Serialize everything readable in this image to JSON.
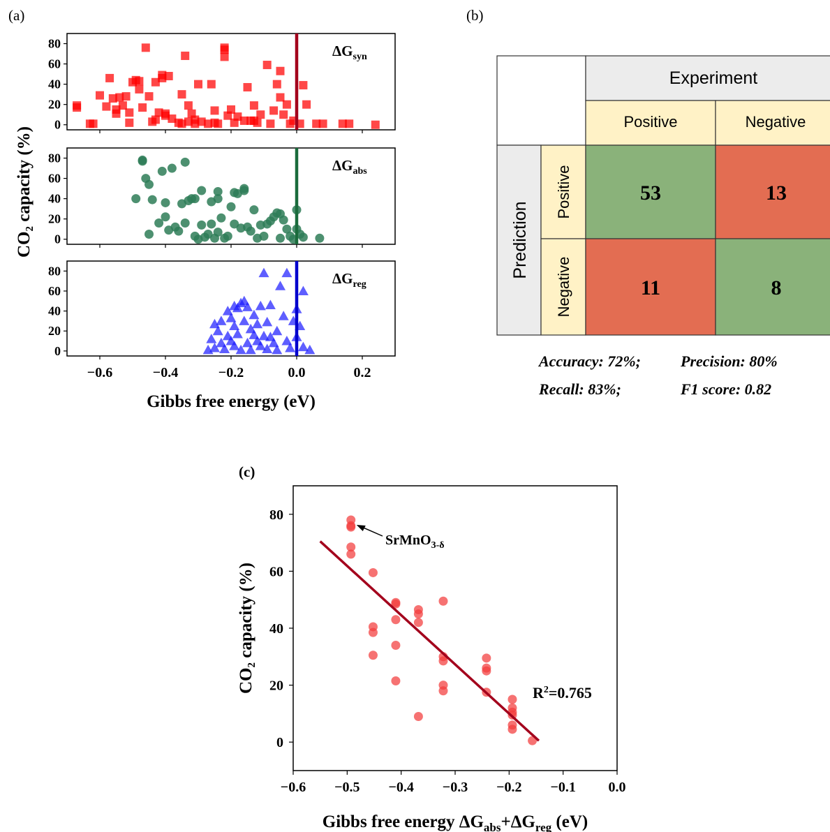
{
  "panel_labels": {
    "a": "(a)",
    "b": "(b)",
    "c": "(c)"
  },
  "colors": {
    "syn": "#ff0000",
    "syn_line": "#a3001c",
    "abs": "#2e7d57",
    "abs_line": "#1a6b3c",
    "reg": "#1a1aff",
    "reg_line": "#0000cc",
    "c_points": "#f23c3c",
    "c_line": "#a3001c",
    "header_gray": "#ececec",
    "header_yellow": "#fff2c6",
    "cell_green": "#8ab27a",
    "cell_red": "#e36d52"
  },
  "chart_data": [
    {
      "type": "scatter",
      "panel": "a-top",
      "marker": "square",
      "annotation": {
        "base": "ΔG",
        "sub": "syn"
      },
      "ylabel": "CO₂ capacity (%)",
      "xlim": [
        -0.7,
        0.3
      ],
      "ylim": [
        -5,
        90
      ],
      "yticks": [
        "0",
        "20",
        "40",
        "60",
        "80"
      ],
      "xticks": [],
      "vline": 0,
      "points": [
        [
          -0.67,
          19
        ],
        [
          -0.67,
          17
        ],
        [
          -0.63,
          1
        ],
        [
          -0.62,
          1
        ],
        [
          -0.6,
          29
        ],
        [
          -0.58,
          18
        ],
        [
          -0.57,
          46
        ],
        [
          -0.56,
          26
        ],
        [
          -0.55,
          11
        ],
        [
          -0.55,
          15
        ],
        [
          -0.54,
          27
        ],
        [
          -0.53,
          19
        ],
        [
          -0.52,
          28
        ],
        [
          -0.51,
          12
        ],
        [
          -0.51,
          2
        ],
        [
          -0.5,
          42
        ],
        [
          -0.49,
          44
        ],
        [
          -0.48,
          35
        ],
        [
          -0.48,
          43
        ],
        [
          -0.47,
          17
        ],
        [
          -0.46,
          76
        ],
        [
          -0.45,
          28
        ],
        [
          -0.44,
          3
        ],
        [
          -0.43,
          5
        ],
        [
          -0.43,
          42
        ],
        [
          -0.42,
          12
        ],
        [
          -0.41,
          46
        ],
        [
          -0.41,
          49
        ],
        [
          -0.4,
          9
        ],
        [
          -0.4,
          11
        ],
        [
          -0.39,
          48
        ],
        [
          -0.38,
          6
        ],
        [
          -0.36,
          2
        ],
        [
          -0.35,
          1
        ],
        [
          -0.35,
          30
        ],
        [
          -0.34,
          68
        ],
        [
          -0.33,
          3
        ],
        [
          -0.33,
          19
        ],
        [
          -0.32,
          11
        ],
        [
          -0.31,
          5
        ],
        [
          -0.31,
          1
        ],
        [
          -0.3,
          40
        ],
        [
          -0.29,
          3
        ],
        [
          -0.27,
          1
        ],
        [
          -0.26,
          40
        ],
        [
          -0.25,
          14
        ],
        [
          -0.25,
          2
        ],
        [
          -0.24,
          1
        ],
        [
          -0.22,
          74
        ],
        [
          -0.22,
          76
        ],
        [
          -0.22,
          67
        ],
        [
          -0.21,
          9
        ],
        [
          -0.2,
          15
        ],
        [
          -0.19,
          2
        ],
        [
          -0.18,
          8
        ],
        [
          -0.16,
          4
        ],
        [
          -0.15,
          37
        ],
        [
          -0.14,
          4
        ],
        [
          -0.13,
          19
        ],
        [
          -0.13,
          4
        ],
        [
          -0.12,
          2
        ],
        [
          -0.11,
          10
        ],
        [
          -0.09,
          59
        ],
        [
          -0.08,
          1
        ],
        [
          -0.07,
          14
        ],
        [
          -0.06,
          40
        ],
        [
          -0.05,
          53
        ],
        [
          -0.05,
          27
        ],
        [
          -0.04,
          10
        ],
        [
          -0.03,
          20
        ],
        [
          -0.02,
          1
        ],
        [
          -0.01,
          4
        ],
        [
          0.01,
          1
        ],
        [
          0.02,
          39
        ],
        [
          0.03,
          20
        ],
        [
          0.06,
          1
        ],
        [
          0.08,
          1
        ],
        [
          0.14,
          1
        ],
        [
          0.16,
          1
        ],
        [
          0.24,
          0
        ]
      ]
    },
    {
      "type": "scatter",
      "panel": "a-middle",
      "marker": "circle",
      "annotation": {
        "base": "ΔG",
        "sub": "abs"
      },
      "xlim": [
        -0.7,
        0.3
      ],
      "ylim": [
        -5,
        90
      ],
      "yticks": [
        "0",
        "20",
        "40",
        "60",
        "80"
      ],
      "xticks": [],
      "vline": 0,
      "points": [
        [
          -0.49,
          40
        ],
        [
          -0.47,
          77
        ],
        [
          -0.47,
          78
        ],
        [
          -0.46,
          60
        ],
        [
          -0.45,
          54
        ],
        [
          -0.45,
          5
        ],
        [
          -0.44,
          39
        ],
        [
          -0.42,
          16
        ],
        [
          -0.41,
          67
        ],
        [
          -0.4,
          36
        ],
        [
          -0.4,
          22
        ],
        [
          -0.39,
          9
        ],
        [
          -0.38,
          70
        ],
        [
          -0.37,
          12
        ],
        [
          -0.36,
          8
        ],
        [
          -0.35,
          35
        ],
        [
          -0.34,
          76
        ],
        [
          -0.34,
          16
        ],
        [
          -0.33,
          38
        ],
        [
          -0.32,
          40
        ],
        [
          -0.31,
          40
        ],
        [
          -0.31,
          3
        ],
        [
          -0.3,
          0
        ],
        [
          -0.29,
          48
        ],
        [
          -0.29,
          14
        ],
        [
          -0.28,
          2
        ],
        [
          -0.27,
          5
        ],
        [
          -0.26,
          15
        ],
        [
          -0.26,
          37
        ],
        [
          -0.25,
          1
        ],
        [
          -0.24,
          47
        ],
        [
          -0.24,
          40
        ],
        [
          -0.24,
          7
        ],
        [
          -0.23,
          21
        ],
        [
          -0.22,
          1
        ],
        [
          -0.21,
          3
        ],
        [
          -0.2,
          32
        ],
        [
          -0.19,
          46
        ],
        [
          -0.19,
          15
        ],
        [
          -0.18,
          45
        ],
        [
          -0.17,
          11
        ],
        [
          -0.16,
          48
        ],
        [
          -0.16,
          50
        ],
        [
          -0.15,
          12
        ],
        [
          -0.14,
          8
        ],
        [
          -0.13,
          29
        ],
        [
          -0.12,
          1
        ],
        [
          -0.11,
          14
        ],
        [
          -0.1,
          3
        ],
        [
          -0.09,
          15
        ],
        [
          -0.08,
          18
        ],
        [
          -0.07,
          22
        ],
        [
          -0.06,
          26
        ],
        [
          -0.05,
          25
        ],
        [
          -0.05,
          1
        ],
        [
          -0.04,
          19
        ],
        [
          -0.03,
          10
        ],
        [
          -0.02,
          3
        ],
        [
          -0.01,
          0
        ],
        [
          0.0,
          29
        ],
        [
          0.0,
          10
        ],
        [
          0.01,
          5
        ],
        [
          0.02,
          2
        ],
        [
          0.07,
          1
        ]
      ]
    },
    {
      "type": "scatter",
      "panel": "a-bottom",
      "marker": "triangle",
      "annotation": {
        "base": "ΔG",
        "sub": "reg"
      },
      "xlabel": "Gibbs free energy (eV)",
      "xlim": [
        -0.7,
        0.3
      ],
      "ylim": [
        -5,
        90
      ],
      "yticks": [
        "0",
        "20",
        "40",
        "60",
        "80"
      ],
      "xticks": [
        "−0.6",
        "−0.4",
        "−0.2",
        "0.0",
        "0.2"
      ],
      "vline": 0,
      "points": [
        [
          -0.27,
          1
        ],
        [
          -0.26,
          12
        ],
        [
          -0.25,
          27
        ],
        [
          -0.25,
          3
        ],
        [
          -0.24,
          20
        ],
        [
          -0.23,
          8
        ],
        [
          -0.23,
          30
        ],
        [
          -0.22,
          2
        ],
        [
          -0.21,
          15
        ],
        [
          -0.21,
          40
        ],
        [
          -0.2,
          10
        ],
        [
          -0.2,
          33
        ],
        [
          -0.19,
          45
        ],
        [
          -0.19,
          25
        ],
        [
          -0.19,
          5
        ],
        [
          -0.18,
          43
        ],
        [
          -0.18,
          17
        ],
        [
          -0.17,
          48
        ],
        [
          -0.17,
          1
        ],
        [
          -0.16,
          50
        ],
        [
          -0.16,
          30
        ],
        [
          -0.15,
          8
        ],
        [
          -0.15,
          44
        ],
        [
          -0.14,
          22
        ],
        [
          -0.14,
          1
        ],
        [
          -0.13,
          16
        ],
        [
          -0.13,
          36
        ],
        [
          -0.12,
          10
        ],
        [
          -0.12,
          27
        ],
        [
          -0.11,
          45
        ],
        [
          -0.11,
          5
        ],
        [
          -0.1,
          78
        ],
        [
          -0.1,
          15
        ],
        [
          -0.09,
          29
        ],
        [
          -0.09,
          2
        ],
        [
          -0.08,
          14
        ],
        [
          -0.08,
          46
        ],
        [
          -0.07,
          8
        ],
        [
          -0.06,
          20
        ],
        [
          -0.06,
          1
        ],
        [
          -0.05,
          65
        ],
        [
          -0.04,
          35
        ],
        [
          -0.03,
          78
        ],
        [
          -0.03,
          10
        ],
        [
          -0.02,
          3
        ],
        [
          -0.01,
          30
        ],
        [
          0.0,
          42
        ],
        [
          0.0,
          14
        ],
        [
          0.01,
          25
        ],
        [
          0.02,
          60
        ],
        [
          0.02,
          4
        ],
        [
          0.04,
          1
        ]
      ]
    },
    {
      "type": "table",
      "panel": "b",
      "column_header": "Experiment",
      "row_header": "Prediction",
      "columns": [
        "Positive",
        "Negative"
      ],
      "rows": [
        "Positive",
        "Negative"
      ],
      "values": [
        [
          53,
          13
        ],
        [
          11,
          8
        ]
      ],
      "metrics": [
        [
          "Accuracy: 72%;",
          "Precision: 80%"
        ],
        [
          "Recall: 83%;",
          "F1 score: 0.82"
        ]
      ]
    },
    {
      "type": "scatter",
      "panel": "c",
      "xlabel": {
        "prefix": "Gibbs free energy ΔG",
        "sub1": "abs",
        "mid": "+ΔG",
        "sub2": "reg",
        "suffix": " (eV)"
      },
      "ylabel": "CO₂ capacity (%)",
      "xlim": [
        -0.6,
        0.0
      ],
      "ylim": [
        -10,
        90
      ],
      "xticks": [
        -0.6,
        -0.5,
        -0.4,
        -0.3,
        -0.2,
        -0.1,
        0.0
      ],
      "xtick_labels": [
        "−0.6",
        "−0.5",
        "−0.4",
        "−0.3",
        "−0.2",
        "−0.1",
        "0.0"
      ],
      "yticks": [
        0,
        20,
        40,
        60,
        80
      ],
      "ytick_labels": [
        "0",
        "20",
        "40",
        "60",
        "80"
      ],
      "fit_line": {
        "x": [
          -0.55,
          -0.145
        ],
        "y": [
          70.5,
          0.5
        ]
      },
      "r2_label": {
        "base": "R",
        "sup": "2",
        "rest": "=0.765"
      },
      "arrow_label": {
        "base": "SrMnO",
        "sub": "3-δ"
      },
      "points": [
        [
          -0.493,
          78
        ],
        [
          -0.493,
          76
        ],
        [
          -0.493,
          75.5
        ],
        [
          -0.493,
          68.5
        ],
        [
          -0.493,
          66
        ],
        [
          -0.452,
          59.5
        ],
        [
          -0.452,
          40.5
        ],
        [
          -0.452,
          38.5
        ],
        [
          -0.452,
          30.5
        ],
        [
          -0.41,
          49
        ],
        [
          -0.41,
          48.5
        ],
        [
          -0.41,
          43
        ],
        [
          -0.41,
          34
        ],
        [
          -0.41,
          21.5
        ],
        [
          -0.368,
          46.5
        ],
        [
          -0.368,
          45
        ],
        [
          -0.368,
          42
        ],
        [
          -0.368,
          9
        ],
        [
          -0.322,
          49.5
        ],
        [
          -0.322,
          30
        ],
        [
          -0.322,
          28.5
        ],
        [
          -0.322,
          20
        ],
        [
          -0.322,
          18
        ],
        [
          -0.242,
          29.5
        ],
        [
          -0.242,
          26
        ],
        [
          -0.242,
          25
        ],
        [
          -0.242,
          17.5
        ],
        [
          -0.194,
          15
        ],
        [
          -0.194,
          12
        ],
        [
          -0.194,
          10.5
        ],
        [
          -0.194,
          9.5
        ],
        [
          -0.194,
          6
        ],
        [
          -0.194,
          4.5
        ],
        [
          -0.157,
          0.5
        ]
      ]
    }
  ]
}
